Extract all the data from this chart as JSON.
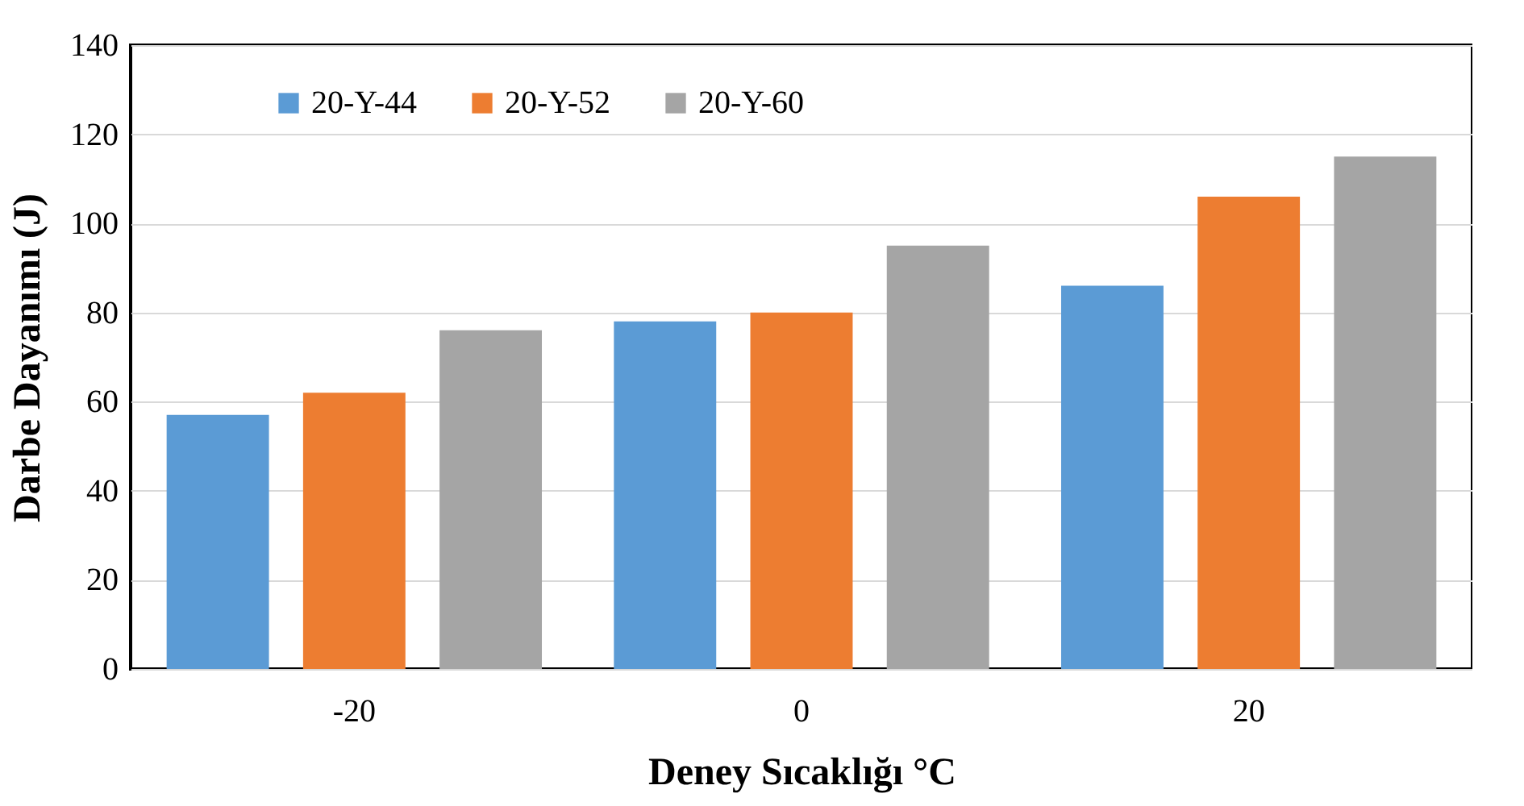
{
  "chart_data": {
    "type": "bar",
    "xlabel": "Deney Sıcaklığı °C",
    "ylabel": "Darbe Dayanımı (J)",
    "categories": [
      "-20",
      "0",
      "20"
    ],
    "series": [
      {
        "name": "20-Y-44",
        "color": "#5b9bd5",
        "values": [
          57,
          78,
          86
        ]
      },
      {
        "name": "20-Y-52",
        "color": "#ed7d31",
        "values": [
          62,
          80,
          106
        ]
      },
      {
        "name": "20-Y-60",
        "color": "#a5a5a5",
        "values": [
          76,
          95,
          115
        ]
      }
    ],
    "ylim": [
      0,
      140
    ],
    "yticks": [
      0,
      20,
      40,
      60,
      80,
      100,
      120,
      140
    ],
    "grid": "y",
    "legend": "top left"
  }
}
